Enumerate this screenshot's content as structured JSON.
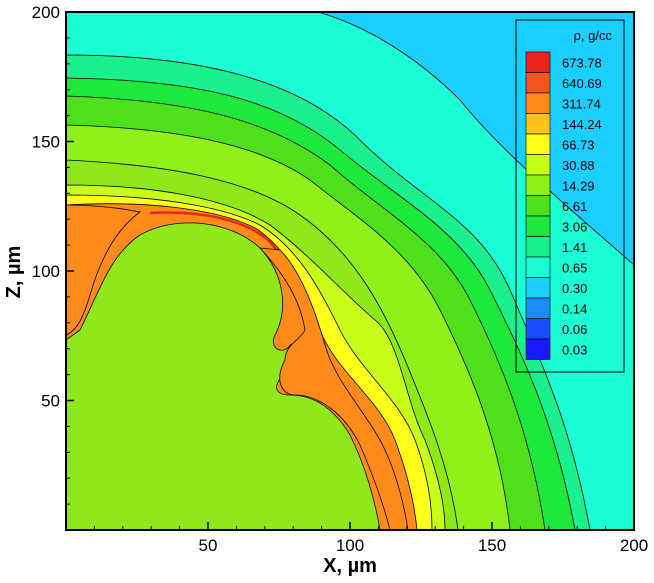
{
  "chart_data": {
    "type": "contour",
    "xlabel": "X, µm",
    "ylabel": "Z, µm",
    "xlim": [
      0,
      200
    ],
    "ylim": [
      0,
      200
    ],
    "x_ticks": [
      50,
      100,
      150,
      200
    ],
    "y_ticks": [
      50,
      100,
      150,
      200
    ],
    "x_tick_labels": [
      "50",
      "100",
      "150",
      "200"
    ],
    "y_tick_labels": [
      "50",
      "100",
      "150",
      "200"
    ],
    "legend": {
      "title": "ρ, g/cc",
      "placement": "top-right",
      "levels": [
        {
          "label": "673.78",
          "color": "#e8261c"
        },
        {
          "label": "640.69",
          "color": "#f0561c"
        },
        {
          "label": "311.74",
          "color": "#ff8c1a"
        },
        {
          "label": "144.24",
          "color": "#ffc31a"
        },
        {
          "label": "66.73",
          "color": "#ffff1a"
        },
        {
          "label": "30.88",
          "color": "#c8ff1a"
        },
        {
          "label": "14.29",
          "color": "#8ff01a"
        },
        {
          "label": "6.61",
          "color": "#4ee01a"
        },
        {
          "label": "3.06",
          "color": "#1ee83c"
        },
        {
          "label": "1.41",
          "color": "#1af08c"
        },
        {
          "label": "0.65",
          "color": "#1affd6"
        },
        {
          "label": "0.30",
          "color": "#1acfff"
        },
        {
          "label": "0.14",
          "color": "#1a8cff"
        },
        {
          "label": "0.06",
          "color": "#1a4cff"
        },
        {
          "label": "0.03",
          "color": "#1a1aff"
        }
      ]
    }
  }
}
